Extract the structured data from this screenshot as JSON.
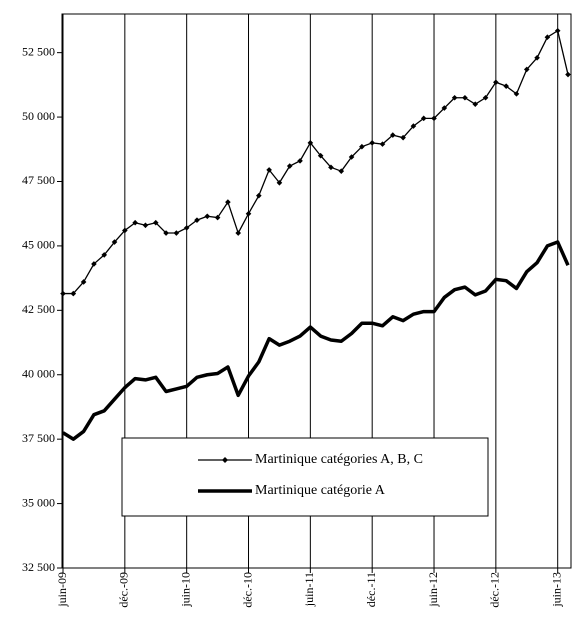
{
  "chart_data": {
    "type": "line",
    "categories": [
      "juin-09",
      null,
      null,
      null,
      null,
      null,
      "déc.-09",
      null,
      null,
      null,
      null,
      null,
      "juin-10",
      null,
      null,
      null,
      null,
      null,
      "déc.-10",
      null,
      null,
      null,
      null,
      null,
      "juin-11",
      null,
      null,
      null,
      null,
      null,
      "déc.-11",
      null,
      null,
      null,
      null,
      null,
      "juin-12",
      null,
      null,
      null,
      null,
      null,
      "déc.-12",
      null,
      null,
      null,
      null,
      null,
      "juin-13",
      null
    ],
    "series": [
      {
        "name": "Martinique catégories A, B, C",
        "color": "#000000",
        "marker": "diamond",
        "values": [
          43150,
          43150,
          43600,
          44300,
          44650,
          45150,
          45600,
          45900,
          45800,
          45900,
          45500,
          45500,
          45700,
          46000,
          46150,
          46100,
          46700,
          45500,
          46250,
          46950,
          47950,
          47450,
          48100,
          48300,
          49000,
          48500,
          48050,
          47900,
          48450,
          48850,
          49000,
          48950,
          49300,
          49200,
          49650,
          49950,
          49950,
          50350,
          50750,
          50750,
          50500,
          50750,
          51350,
          51200,
          50900,
          51850,
          52300,
          53100,
          53350,
          51650
        ]
      },
      {
        "name": "Martinique catégorie A",
        "color": "#000000",
        "marker": "none",
        "values": [
          37750,
          37500,
          37800,
          38450,
          38600,
          39050,
          39500,
          39850,
          39800,
          39900,
          39350,
          39450,
          39550,
          39900,
          40000,
          40050,
          40300,
          39200,
          39950,
          40500,
          41400,
          41150,
          41300,
          41500,
          41850,
          41500,
          41350,
          41300,
          41600,
          42000,
          42000,
          41900,
          42250,
          42100,
          42350,
          42450,
          42450,
          43000,
          43300,
          43400,
          43100,
          43250,
          43700,
          43650,
          43350,
          44000,
          44350,
          45000,
          45150,
          44250
        ]
      }
    ],
    "ylim": [
      32500,
      54000
    ],
    "yticks": [
      {
        "value": 32500,
        "label": "32 500"
      },
      {
        "value": 35000,
        "label": "35 000"
      },
      {
        "value": 37500,
        "label": "37 500"
      },
      {
        "value": 40000,
        "label": "40 000"
      },
      {
        "value": 42500,
        "label": "42 500"
      },
      {
        "value": 45000,
        "label": "45 000"
      },
      {
        "value": 47500,
        "label": "47 500"
      },
      {
        "value": 50000,
        "label": "50 000"
      },
      {
        "value": 52500,
        "label": "52 500"
      }
    ],
    "grid": "x",
    "legend": "bottom-center"
  }
}
